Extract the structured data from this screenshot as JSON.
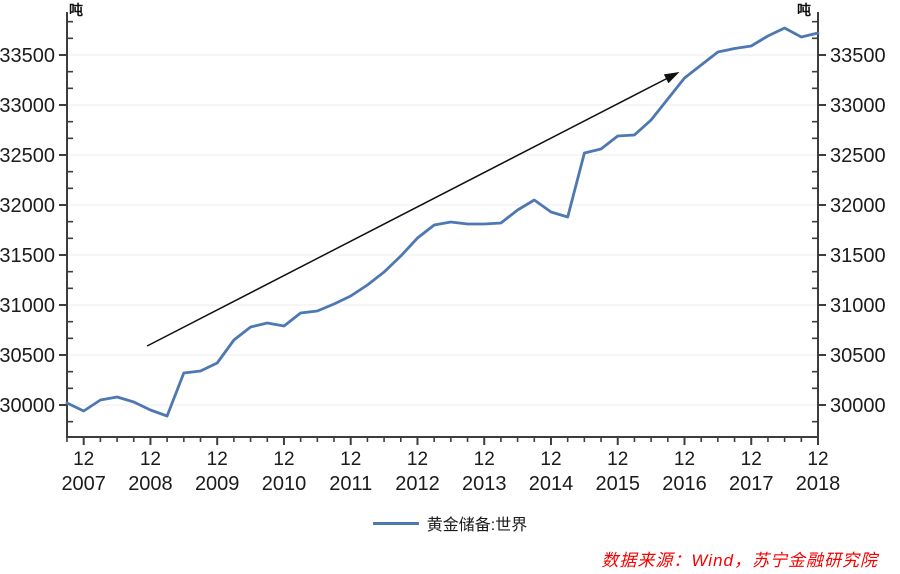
{
  "colors": {
    "line": "#4e78b2",
    "axis": "#3d3d3d",
    "tick": "#3d3d3d",
    "grid": "#ececec",
    "label_text": "#1b1b1b",
    "source_text": "#f70000",
    "arrow": "#111111"
  },
  "chart_data": {
    "type": "line",
    "title": "",
    "unit_label_left": "吨",
    "unit_label_right": "吨",
    "ylabel": "吨",
    "xlabel": "",
    "grid": true,
    "legend_position": "bottom",
    "ylim": [
      29690,
      33900
    ],
    "y_ticks": [
      30000,
      30500,
      31000,
      31500,
      32000,
      32500,
      33000,
      33500
    ],
    "x_ticks": [
      {
        "month": "12",
        "year": "2007"
      },
      {
        "month": "12",
        "year": "2008"
      },
      {
        "month": "12",
        "year": "2009"
      },
      {
        "month": "12",
        "year": "2010"
      },
      {
        "month": "12",
        "year": "2011"
      },
      {
        "month": "12",
        "year": "2012"
      },
      {
        "month": "12",
        "year": "2013"
      },
      {
        "month": "12",
        "year": "2014"
      },
      {
        "month": "12",
        "year": "2015"
      },
      {
        "month": "12",
        "year": "2016"
      },
      {
        "month": "12",
        "year": "2017"
      },
      {
        "month": "12",
        "year": "2018"
      }
    ],
    "series": [
      {
        "name": "黄金储备:世界",
        "color": "#4e78b2",
        "x": [
          "2007Q3",
          "2007Q4",
          "2008Q1",
          "2008Q2",
          "2008Q3",
          "2008Q4",
          "2009Q1",
          "2009Q2",
          "2009Q3",
          "2009Q4",
          "2010Q1",
          "2010Q2",
          "2010Q3",
          "2010Q4",
          "2011Q1",
          "2011Q2",
          "2011Q3",
          "2011Q4",
          "2012Q1",
          "2012Q2",
          "2012Q3",
          "2012Q4",
          "2013Q1",
          "2013Q2",
          "2013Q3",
          "2013Q4",
          "2014Q1",
          "2014Q2",
          "2014Q3",
          "2014Q4",
          "2015Q1",
          "2015Q2",
          "2015Q3",
          "2015Q4",
          "2016Q1",
          "2016Q2",
          "2016Q3",
          "2016Q4",
          "2017Q1",
          "2017Q2",
          "2017Q3",
          "2017Q4",
          "2018Q1",
          "2018Q2",
          "2018Q3",
          "2018Q4"
        ],
        "values": [
          30020,
          29940,
          30050,
          30080,
          30030,
          29950,
          29890,
          30320,
          30340,
          30420,
          30650,
          30780,
          30820,
          30790,
          30920,
          30940,
          31010,
          31090,
          31200,
          31330,
          31490,
          31670,
          31800,
          31830,
          31810,
          31810,
          31820,
          31950,
          32050,
          31930,
          31880,
          32520,
          32560,
          32690,
          32700,
          32850,
          33060,
          33270,
          33400,
          33530,
          33565,
          33590,
          33690,
          33770,
          33680,
          33720
        ]
      }
    ],
    "annotation_arrow": {
      "from": {
        "index": 4.8,
        "value": 30590
      },
      "to": {
        "index": 36.7,
        "value": 33330
      }
    }
  },
  "legend": {
    "items": [
      {
        "label": "黄金储备:世界",
        "color": "#4e78b2"
      }
    ]
  },
  "source_note": {
    "text": "数据来源：Wind，苏宁金融研究院",
    "color": "#f70000"
  }
}
